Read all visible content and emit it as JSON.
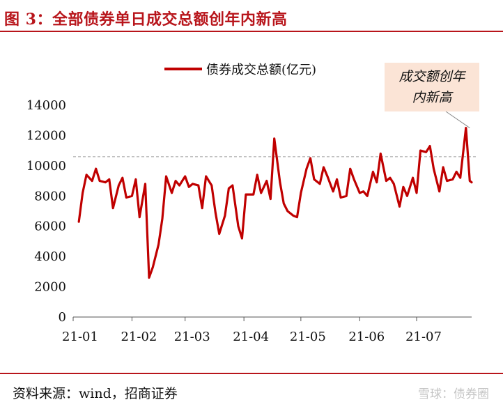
{
  "figure_title": "图 3：全部债券单日成交总额创年内新高",
  "source_note": "资料来源：wind，招商证券",
  "watermark": "雪球：债券圈",
  "colors": {
    "accent": "#b8151b",
    "series": "#c00000",
    "annotation_bg": "#fbe4d6",
    "ref_line": "#999999"
  },
  "chart_data": {
    "type": "line",
    "xlabel": "",
    "ylabel": "",
    "xlim": [
      "2021-01-04",
      "2021-07-30"
    ],
    "ylim": [
      0,
      14000
    ],
    "y_ticks": [
      "0",
      "2000",
      "4000",
      "6000",
      "8000",
      "10000",
      "12000",
      "14000"
    ],
    "x_ticks": [
      {
        "label": "21-01",
        "date": "2021-01-01"
      },
      {
        "label": "21-02",
        "date": "2021-02-01"
      },
      {
        "label": "21-03",
        "date": "2021-03-01"
      },
      {
        "label": "21-04",
        "date": "2021-04-01"
      },
      {
        "label": "21-05",
        "date": "2021-05-01"
      },
      {
        "label": "21-06",
        "date": "2021-06-01"
      },
      {
        "label": "21-07",
        "date": "2021-07-01"
      }
    ],
    "grid": false,
    "legend": {
      "position": "top",
      "entries": [
        "债券成交总额(亿元)"
      ]
    },
    "reference_line": {
      "y": 10600,
      "style": "dashed"
    },
    "annotation": {
      "text_line1": "成交额创年",
      "text_line2": "内新高",
      "x": "2021-07-29",
      "y": 12500
    },
    "series": [
      {
        "name": "债券成交总额(亿元)",
        "x": [
          "2021-01-04",
          "2021-01-06",
          "2021-01-08",
          "2021-01-11",
          "2021-01-13",
          "2021-01-15",
          "2021-01-18",
          "2021-01-20",
          "2021-01-22",
          "2021-01-25",
          "2021-01-27",
          "2021-01-29",
          "2021-02-01",
          "2021-02-03",
          "2021-02-05",
          "2021-02-08",
          "2021-02-10",
          "2021-02-12",
          "2021-02-15",
          "2021-02-17",
          "2021-02-19",
          "2021-02-22",
          "2021-02-24",
          "2021-02-26",
          "2021-03-01",
          "2021-03-03",
          "2021-03-05",
          "2021-03-08",
          "2021-03-10",
          "2021-03-12",
          "2021-03-15",
          "2021-03-17",
          "2021-03-19",
          "2021-03-22",
          "2021-03-24",
          "2021-03-26",
          "2021-03-29",
          "2021-03-31",
          "2021-04-02",
          "2021-04-06",
          "2021-04-08",
          "2021-04-10",
          "2021-04-13",
          "2021-04-15",
          "2021-04-17",
          "2021-04-20",
          "2021-04-22",
          "2021-04-24",
          "2021-04-27",
          "2021-04-29",
          "2021-05-01",
          "2021-05-04",
          "2021-05-06",
          "2021-05-08",
          "2021-05-11",
          "2021-05-13",
          "2021-05-15",
          "2021-05-18",
          "2021-05-20",
          "2021-05-22",
          "2021-05-25",
          "2021-05-27",
          "2021-05-29",
          "2021-06-01",
          "2021-06-03",
          "2021-06-05",
          "2021-06-08",
          "2021-06-10",
          "2021-06-12",
          "2021-06-15",
          "2021-06-17",
          "2021-06-19",
          "2021-06-22",
          "2021-06-24",
          "2021-06-26",
          "2021-06-29",
          "2021-07-01",
          "2021-07-03",
          "2021-07-06",
          "2021-07-08",
          "2021-07-10",
          "2021-07-13",
          "2021-07-15",
          "2021-07-17",
          "2021-07-20",
          "2021-07-22",
          "2021-07-24",
          "2021-07-27",
          "2021-07-29",
          "2021-07-30"
        ],
        "values": [
          6300,
          8200,
          9400,
          9000,
          9800,
          9000,
          8900,
          9100,
          7200,
          8700,
          9200,
          7900,
          8000,
          9100,
          6600,
          8800,
          2600,
          3300,
          4800,
          6500,
          9300,
          8200,
          9000,
          8700,
          9300,
          8600,
          8800,
          8700,
          7200,
          9300,
          8700,
          6900,
          5500,
          6700,
          8500,
          8700,
          6000,
          5200,
          8100,
          8100,
          9400,
          8200,
          9000,
          7800,
          11800,
          8900,
          7500,
          7000,
          6700,
          6600,
          8200,
          9800,
          10500,
          9100,
          8800,
          9900,
          9300,
          8300,
          9100,
          7900,
          8000,
          9800,
          9100,
          8200,
          8300,
          8000,
          9600,
          8900,
          10800,
          9000,
          9200,
          8800,
          7300,
          8600,
          8000,
          9200,
          8200,
          11000,
          10900,
          11300,
          9800,
          8300,
          9900,
          9000,
          9100,
          9600,
          9200,
          12500,
          9000,
          8900
        ]
      }
    ]
  }
}
